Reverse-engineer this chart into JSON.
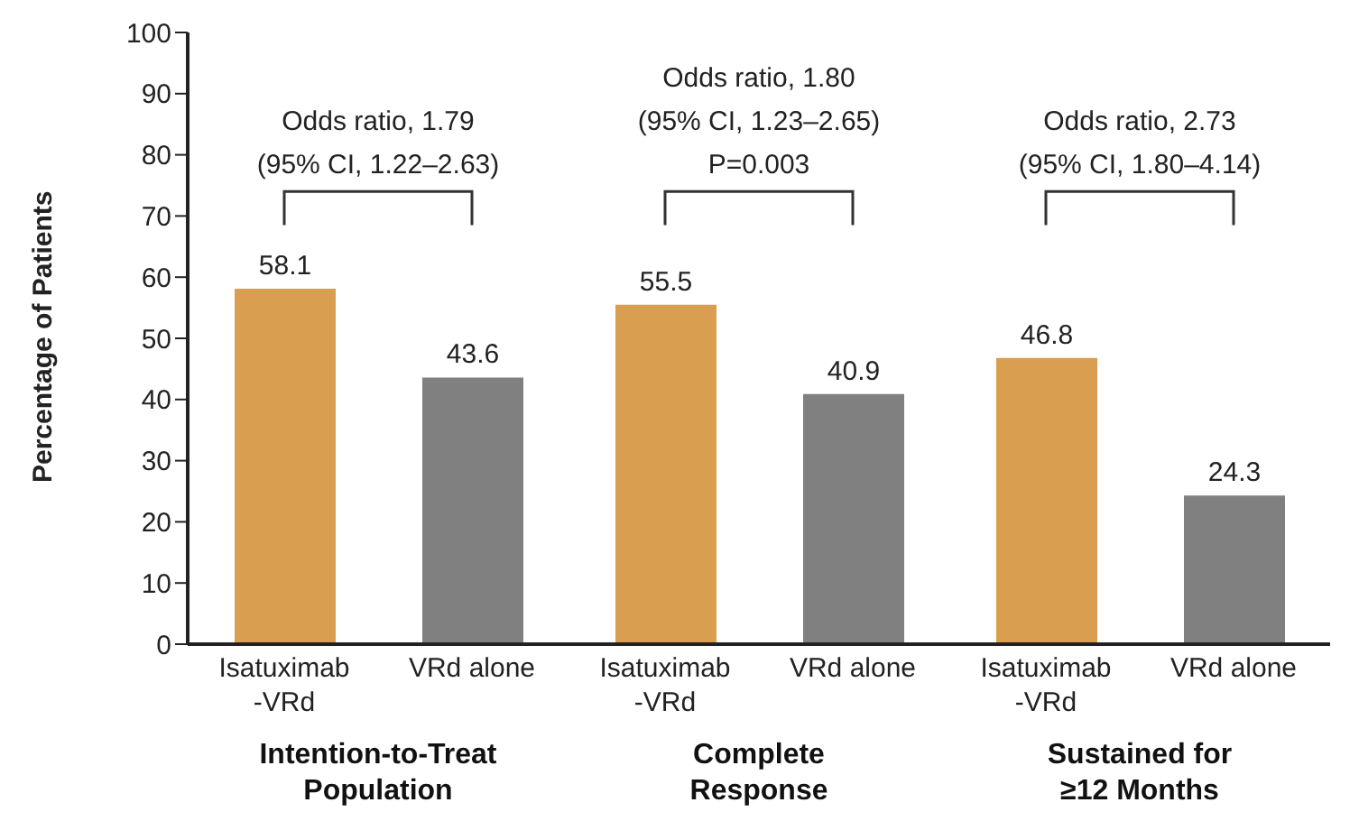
{
  "chart_data": {
    "type": "bar",
    "ylabel": "Percentage of Patients",
    "categories": [
      "Intention-to-Treat\nPopulation",
      "Complete\nResponse",
      "Sustained for\n≥12 Months"
    ],
    "series": [
      {
        "name": "Isatuximab\n-VRd",
        "color": "#d99e4f",
        "values": [
          58.1,
          55.5,
          46.8
        ]
      },
      {
        "name": "VRd alone",
        "color": "#808080",
        "values": [
          43.6,
          40.9,
          24.3
        ]
      }
    ],
    "ylim": [
      0,
      100
    ],
    "yticks": [
      0,
      10,
      20,
      30,
      40,
      50,
      60,
      70,
      80,
      90,
      100
    ],
    "grid": false,
    "legend": false,
    "data_labels": true,
    "annotations": [
      "Odds ratio, 1.79\n(95% CI, 1.22–2.63)",
      "Odds ratio, 1.80\n(95% CI, 1.23–2.65)\nP=0.003",
      "Odds ratio, 2.73\n(95% CI, 1.80–4.14)"
    ]
  }
}
